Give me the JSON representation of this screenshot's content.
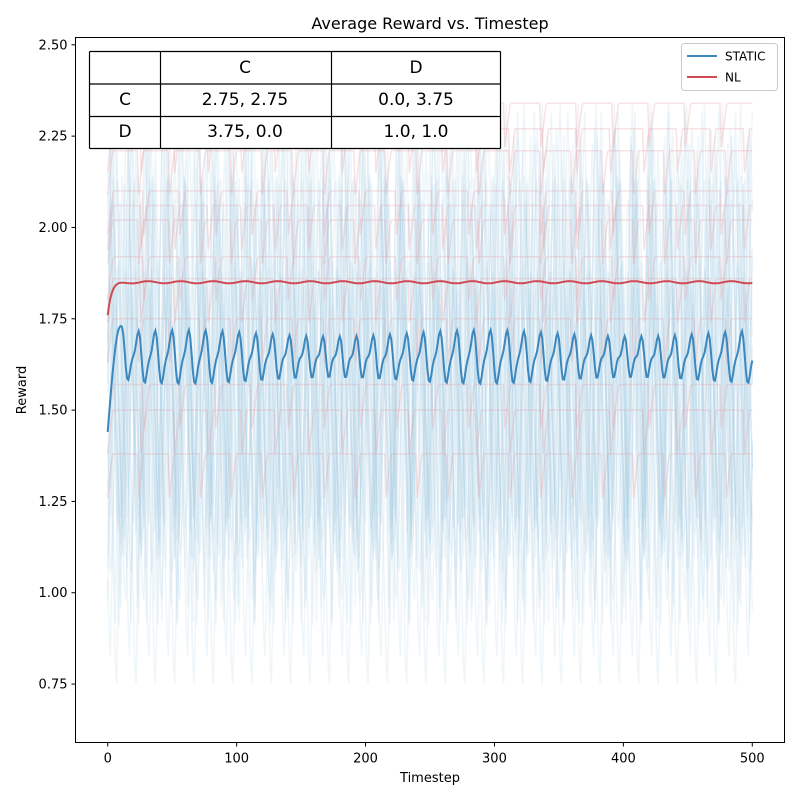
{
  "chart_data": {
    "type": "line",
    "title": "Average Reward vs. Timestep",
    "xlabel": "Timestep",
    "ylabel": "Reward",
    "xlim": [
      -25,
      525
    ],
    "ylim": [
      0.59,
      2.52
    ],
    "x_ticks": [
      0,
      100,
      200,
      300,
      400,
      500
    ],
    "y_ticks": [
      0.75,
      1.0,
      1.25,
      1.5,
      1.75,
      2.0,
      2.25,
      2.5
    ],
    "grid": false,
    "legend_position": "top-right",
    "series": [
      {
        "name": "STATIC",
        "color": "#3b87be",
        "mean_level": 1.65,
        "start_value": 1.44,
        "early_peak": 1.73,
        "oscillation_min": 1.58,
        "oscillation_max": 1.71,
        "oscillation_period": 13,
        "end_value": 1.68,
        "x_range": [
          0,
          500
        ]
      },
      {
        "name": "NL",
        "color": "#cf4a52",
        "start_value": 1.76,
        "plateau_value": 1.85,
        "x_range": [
          0,
          500
        ]
      }
    ],
    "background_traces": {
      "STATIC": {
        "color": "#a9cce3",
        "count": 20,
        "min": 0.68,
        "max": 2.45
      },
      "NL": {
        "color": "#e8a0a6",
        "count": 12,
        "levels": [
          1.38,
          1.5,
          1.57,
          1.75,
          1.86,
          1.92,
          2.02,
          2.06,
          2.1,
          2.21,
          2.27,
          2.34
        ]
      }
    },
    "payoff_table": {
      "col_headers": [
        "",
        "C",
        "D"
      ],
      "rows": [
        {
          "label": "C",
          "cells": [
            "2.75, 2.75",
            "0.0, 3.75"
          ]
        },
        {
          "label": "D",
          "cells": [
            "3.75, 0.0",
            "1.0, 1.0"
          ]
        }
      ]
    }
  }
}
